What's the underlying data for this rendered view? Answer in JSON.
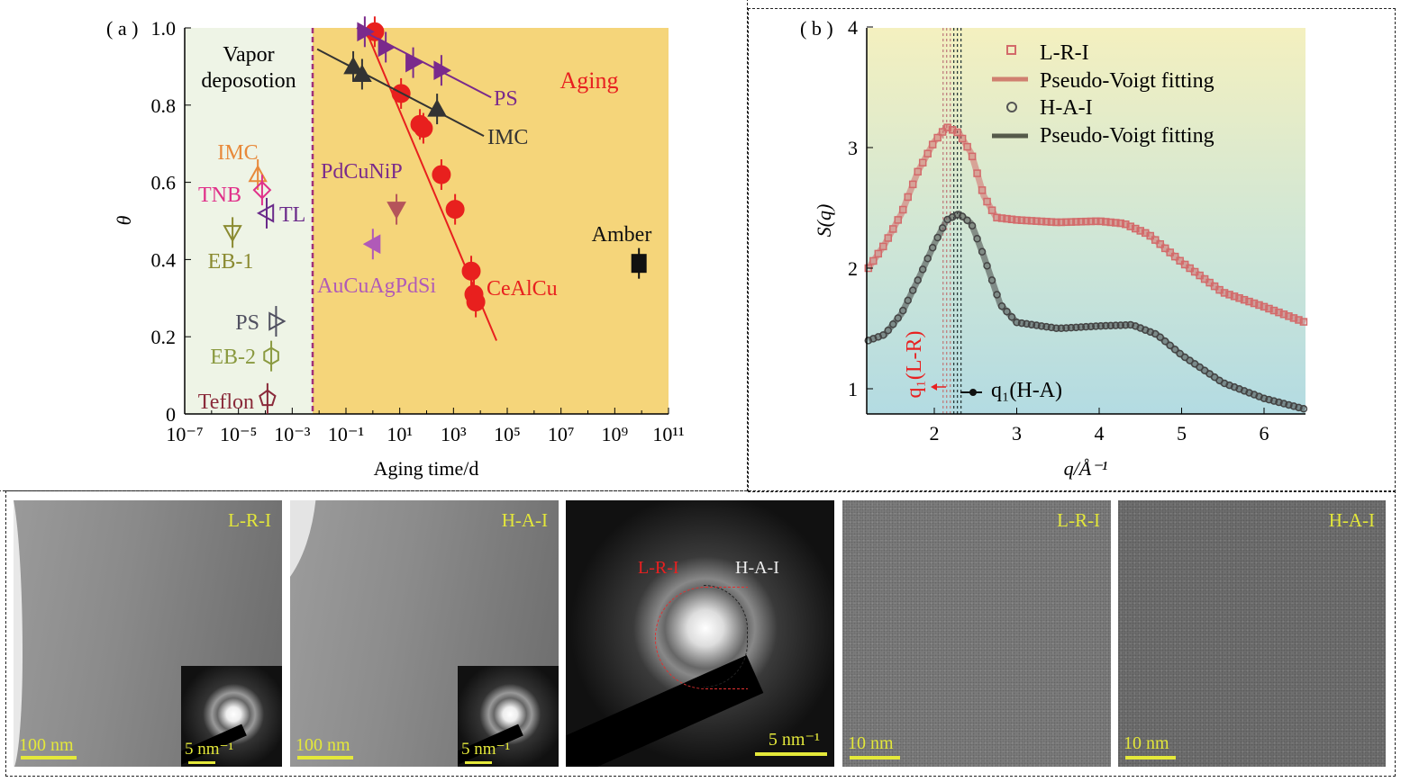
{
  "chart_data": [
    {
      "type": "scatter",
      "panel_label": "( a )",
      "xlabel": "Aging time/d",
      "ylabel": "θ",
      "xscale": "log",
      "xlim_log10": [
        -7,
        11
      ],
      "ylim": [
        0,
        1.0
      ],
      "xticks": [
        "10⁻⁷",
        "10⁻⁵",
        "10⁻³",
        "10⁻¹",
        "10¹",
        "10³",
        "10⁵",
        "10⁷",
        "10⁹",
        "10¹¹"
      ],
      "xtick_exponents": [
        -7,
        -5,
        -3,
        -1,
        1,
        3,
        5,
        7,
        9,
        11
      ],
      "yticks": [
        "0",
        "0.2",
        "0.4",
        "0.6",
        "0.8",
        "1.0"
      ],
      "ytick_values": [
        0,
        0.2,
        0.4,
        0.6,
        0.8,
        1.0
      ],
      "region_divider_log10": -2.24,
      "regions": [
        {
          "label": "Vapor deposotion",
          "color": "#eef4e6"
        },
        {
          "label": "Aging",
          "color": "#f5d57a",
          "label_color": "#e82020"
        }
      ],
      "series": [
        {
          "name": "CeAlCu",
          "color": "#e8201e",
          "marker": "circle",
          "filled": true,
          "x_log10": [
            0.07,
            1.05,
            1.75,
            1.88,
            2.55,
            3.06,
            3.66,
            3.76,
            3.83
          ],
          "y": [
            0.99,
            0.83,
            0.75,
            0.74,
            0.62,
            0.53,
            0.37,
            0.31,
            0.29
          ],
          "fit_x_log10": [
            -0.3,
            4.6
          ],
          "fit_y": [
            1.0,
            0.19
          ]
        },
        {
          "name": "IMC",
          "color": "#333333",
          "marker": "triangle-up",
          "filled": true,
          "x_log10": [
            -0.73,
            -0.4,
            2.39
          ],
          "y": [
            0.9,
            0.88,
            0.79
          ],
          "fit_x_log10": [
            -2.07,
            4.13
          ],
          "fit_y": [
            0.945,
            0.72
          ]
        },
        {
          "name": "PS",
          "color": "#7a2a8c",
          "marker": "triangle-right",
          "filled": true,
          "x_log10": [
            -0.3,
            0.48,
            1.5,
            2.55
          ],
          "y": [
            0.99,
            0.95,
            0.91,
            0.89
          ],
          "fit_x_log10": [
            -0.6,
            4.4
          ],
          "fit_y": [
            1.0,
            0.82
          ]
        },
        {
          "name": "PdCuNiP",
          "color": "#b5545a",
          "label_color": "#7a2a8c",
          "marker": "triangle-down",
          "filled": true,
          "x_log10": [
            0.88
          ],
          "y": [
            0.53
          ]
        },
        {
          "name": "AuCuAgPdSi",
          "color": "#b05ab8",
          "marker": "triangle-left",
          "filled": true,
          "x_log10": [
            0.0
          ],
          "y": [
            0.44
          ]
        },
        {
          "name": "Amber",
          "color": "#111111",
          "marker": "square",
          "filled": true,
          "x_log10": [
            9.9
          ],
          "y": [
            0.39
          ]
        },
        {
          "name": "IMC",
          "color": "#e8893a",
          "marker": "triangle-up",
          "filled": false,
          "x_log10": [
            -4.28
          ],
          "y": [
            0.62
          ]
        },
        {
          "name": "TNB",
          "color": "#e0308a",
          "marker": "diamond",
          "filled": false,
          "x_log10": [
            -4.12
          ],
          "y": [
            0.58
          ]
        },
        {
          "name": "TL",
          "color": "#6a2a8a",
          "marker": "triangle-left",
          "filled": false,
          "x_log10": [
            -3.95
          ],
          "y": [
            0.52
          ]
        },
        {
          "name": "EB-1",
          "color": "#8a8a30",
          "marker": "triangle-down",
          "filled": false,
          "x_log10": [
            -5.22
          ],
          "y": [
            0.47
          ]
        },
        {
          "name": "PS",
          "color": "#505060",
          "marker": "triangle-right",
          "filled": false,
          "x_log10": [
            -3.6
          ],
          "y": [
            0.24
          ]
        },
        {
          "name": "EB-2",
          "color": "#8a9a40",
          "marker": "hexagon",
          "filled": false,
          "x_log10": [
            -3.78
          ],
          "y": [
            0.15
          ]
        },
        {
          "name": "Teflon",
          "color": "#8a2a3a",
          "marker": "pentagon",
          "filled": false,
          "x_log10": [
            -3.92
          ],
          "y": [
            0.04
          ]
        }
      ]
    },
    {
      "type": "line",
      "panel_label": "( b )",
      "xlabel": "q/Å⁻¹",
      "ylabel": "S(q)",
      "xlim": [
        1.18,
        6.5
      ],
      "ylim": [
        0.8,
        4
      ],
      "xticks": [
        2,
        3,
        4,
        5,
        6
      ],
      "yticks": [
        1,
        2,
        3,
        4
      ],
      "legend_position": "top-right",
      "legend": [
        "L-R-I",
        "Pseudo-Voigt fitting",
        "H-A-I",
        "Pseudo-Voigt fitting"
      ],
      "series": [
        {
          "name": "L-R-I",
          "color": "#d36a6a",
          "marker": "square",
          "x": [
            1.2,
            1.4,
            1.6,
            1.8,
            2.0,
            2.15,
            2.3,
            2.45,
            2.6,
            2.75,
            3.0,
            3.5,
            4.0,
            4.3,
            4.6,
            5.0,
            5.5,
            6.0,
            6.5
          ],
          "y": [
            2.0,
            2.2,
            2.45,
            2.8,
            3.05,
            3.17,
            3.12,
            2.95,
            2.6,
            2.42,
            2.4,
            2.38,
            2.39,
            2.37,
            2.28,
            2.05,
            1.8,
            1.68,
            1.55
          ]
        },
        {
          "name": "H-A-I",
          "color": "#444444",
          "marker": "circle",
          "x": [
            1.2,
            1.4,
            1.6,
            1.8,
            2.0,
            2.15,
            2.3,
            2.45,
            2.6,
            2.8,
            3.0,
            3.5,
            4.0,
            4.4,
            4.7,
            5.0,
            5.5,
            6.0,
            6.5
          ],
          "y": [
            1.4,
            1.45,
            1.62,
            1.9,
            2.2,
            2.4,
            2.45,
            2.37,
            2.1,
            1.7,
            1.55,
            1.5,
            1.52,
            1.53,
            1.45,
            1.28,
            1.05,
            0.92,
            0.83
          ]
        }
      ],
      "peak_markers": [
        {
          "label": "q₁(L-R)",
          "q": 2.15,
          "color": "#e82020"
        },
        {
          "label": "q₁(H-A)",
          "q": 2.28,
          "color": "#111111"
        }
      ]
    }
  ],
  "tem_images": [
    {
      "label": "L-R-I",
      "scale": "100 nm",
      "inset_scale": "5 nm⁻¹"
    },
    {
      "label": "H-A-I",
      "scale": "100 nm",
      "inset_scale": "5 nm⁻¹"
    },
    {
      "label_left": "L-R-I",
      "label_right": "H-A-I",
      "scale": "5 nm⁻¹"
    },
    {
      "label": "L-R-I",
      "scale": "10 nm"
    },
    {
      "label": "H-A-I",
      "scale": "10 nm"
    }
  ]
}
